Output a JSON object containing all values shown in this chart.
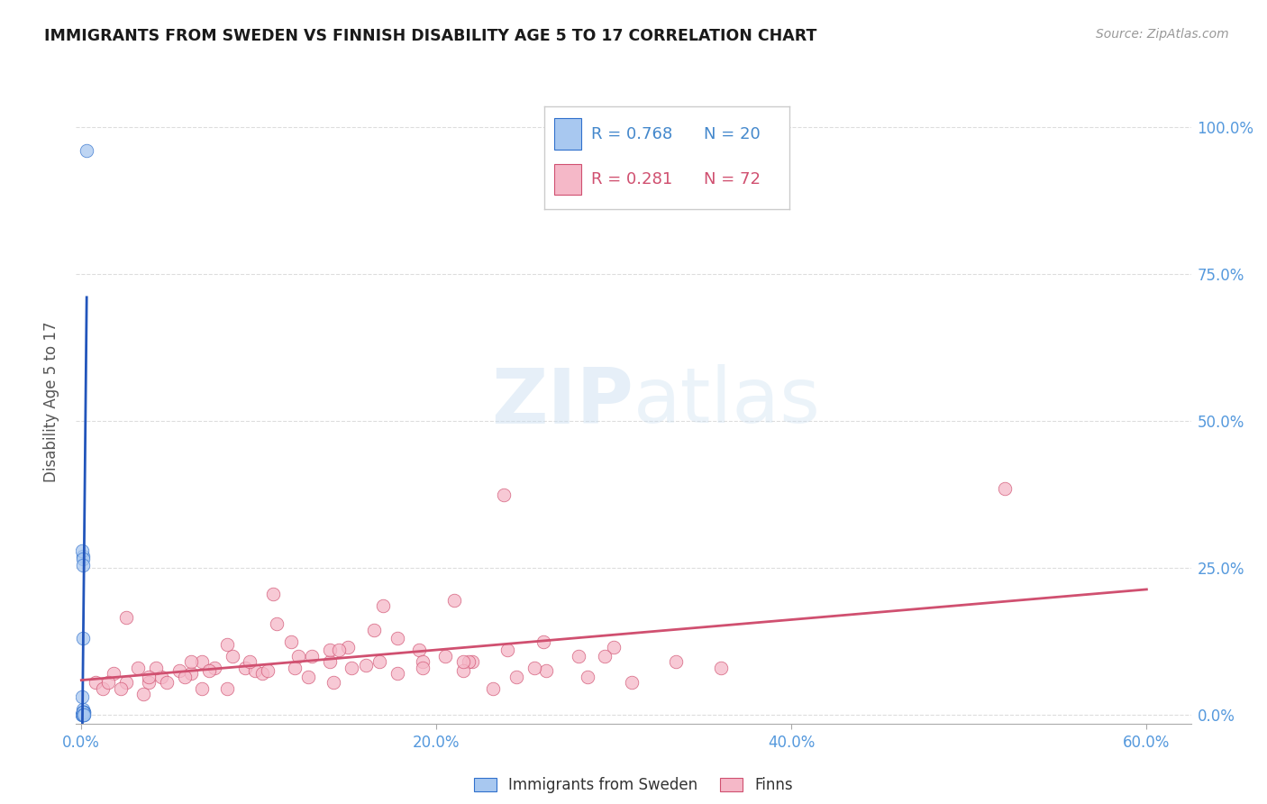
{
  "title": "IMMIGRANTS FROM SWEDEN VS FINNISH DISABILITY AGE 5 TO 17 CORRELATION CHART",
  "source": "Source: ZipAtlas.com",
  "ylabel_label": "Disability Age 5 to 17",
  "legend_r1": "R = 0.768",
  "legend_n1": "N = 20",
  "legend_r2": "R = 0.281",
  "legend_n2": "N = 72",
  "legend_label1": "Immigrants from Sweden",
  "legend_label2": "Finns",
  "color_blue": "#A8C8F0",
  "color_blue_line": "#2255BB",
  "color_blue_dark": "#3070CC",
  "color_pink": "#F5B8C8",
  "color_pink_line": "#D05070",
  "color_blue_text": "#4488CC",
  "color_axis_text": "#5599DD",
  "sweden_x": [
    0.0005,
    0.001,
    0.0008,
    0.0012,
    0.001,
    0.0015,
    0.0008,
    0.001,
    0.0005,
    0.0008,
    0.001,
    0.0012,
    0.0008,
    0.0005,
    0.001,
    0.0005,
    0.0008,
    0.003,
    0.001,
    0.0012
  ],
  "sweden_y": [
    0.0,
    0.0,
    0.005,
    0.005,
    0.005,
    0.0,
    0.01,
    0.27,
    0.28,
    0.265,
    0.255,
    0.005,
    0.13,
    0.0,
    0.005,
    0.03,
    0.005,
    0.96,
    0.0,
    0.0
  ],
  "finns_x": [
    0.008,
    0.012,
    0.018,
    0.025,
    0.032,
    0.038,
    0.045,
    0.055,
    0.062,
    0.068,
    0.075,
    0.085,
    0.092,
    0.098,
    0.11,
    0.12,
    0.13,
    0.14,
    0.15,
    0.16,
    0.17,
    0.19,
    0.21,
    0.22,
    0.24,
    0.26,
    0.28,
    0.3,
    0.015,
    0.022,
    0.035,
    0.048,
    0.058,
    0.072,
    0.082,
    0.095,
    0.108,
    0.118,
    0.128,
    0.14,
    0.152,
    0.165,
    0.178,
    0.192,
    0.205,
    0.218,
    0.232,
    0.245,
    0.025,
    0.042,
    0.062,
    0.082,
    0.102,
    0.122,
    0.145,
    0.168,
    0.192,
    0.215,
    0.238,
    0.262,
    0.285,
    0.31,
    0.335,
    0.36,
    0.038,
    0.068,
    0.105,
    0.142,
    0.178,
    0.215,
    0.255,
    0.295
  ],
  "finns_y": [
    0.055,
    0.045,
    0.07,
    0.055,
    0.08,
    0.055,
    0.065,
    0.075,
    0.07,
    0.09,
    0.08,
    0.1,
    0.08,
    0.075,
    0.155,
    0.08,
    0.1,
    0.09,
    0.115,
    0.085,
    0.185,
    0.11,
    0.195,
    0.09,
    0.11,
    0.125,
    0.1,
    0.115,
    0.055,
    0.045,
    0.035,
    0.055,
    0.065,
    0.075,
    0.045,
    0.09,
    0.205,
    0.125,
    0.065,
    0.11,
    0.08,
    0.145,
    0.07,
    0.09,
    0.1,
    0.09,
    0.045,
    0.065,
    0.165,
    0.08,
    0.09,
    0.12,
    0.07,
    0.1,
    0.11,
    0.09,
    0.08,
    0.075,
    0.375,
    0.075,
    0.065,
    0.055,
    0.09,
    0.08,
    0.065,
    0.045,
    0.075,
    0.055,
    0.13,
    0.09,
    0.08,
    0.1
  ],
  "finns_x_outlier": [
    0.52
  ],
  "finns_y_outlier": [
    0.385
  ],
  "xlim_min": -0.003,
  "xlim_max": 0.625,
  "ylim_min": -0.015,
  "ylim_max": 1.08,
  "xticks": [
    0.0,
    0.2,
    0.4,
    0.6
  ],
  "yticks": [
    0.0,
    0.25,
    0.5,
    0.75,
    1.0
  ],
  "xtick_labels": [
    "0.0%",
    "20.0%",
    "40.0%",
    "60.0%"
  ],
  "ytick_labels": [
    "0.0%",
    "25.0%",
    "50.0%",
    "75.0%",
    "100.0%"
  ],
  "grid_color": "#DDDDDD",
  "spine_color": "#AAAAAA",
  "blue_line_x0": 0.0,
  "blue_line_x1": 0.003,
  "pink_line_x0": 0.0,
  "pink_line_x1": 0.6
}
